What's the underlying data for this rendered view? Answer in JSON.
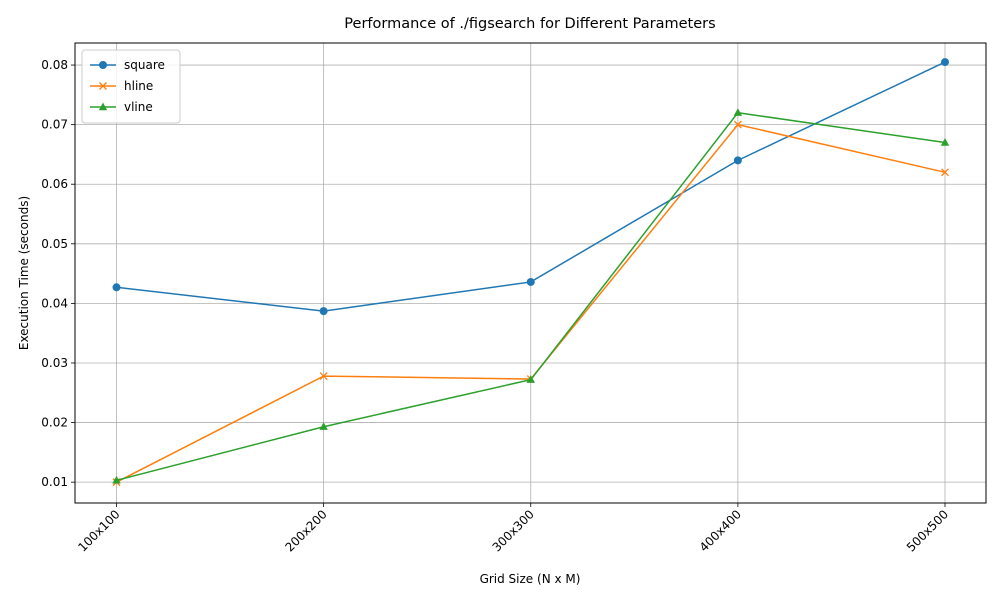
{
  "chart_data": {
    "type": "line",
    "title": "Performance of ./figsearch for Different Parameters",
    "xlabel": "Grid Size (N x M)",
    "ylabel": "Execution Time (seconds)",
    "categories": [
      "100x100",
      "200x200",
      "300x300",
      "400x400",
      "500x500"
    ],
    "yticks": [
      "0.01",
      "0.02",
      "0.03",
      "0.04",
      "0.05",
      "0.06",
      "0.07",
      "0.08"
    ],
    "ylim": [
      0.0065,
      0.0837
    ],
    "grid": true,
    "legend_position": "upper-left",
    "series": [
      {
        "name": "square",
        "marker": "circle",
        "color": "#1f77b4",
        "values": [
          0.0427,
          0.0387,
          0.0436,
          0.064,
          0.0805
        ]
      },
      {
        "name": "hline",
        "marker": "x",
        "color": "#ff7f0e",
        "values": [
          0.01,
          0.0278,
          0.0273,
          0.07,
          0.062
        ]
      },
      {
        "name": "vline",
        "marker": "triangle",
        "color": "#2ca02c",
        "values": [
          0.0103,
          0.0193,
          0.0272,
          0.072,
          0.067
        ]
      }
    ]
  }
}
